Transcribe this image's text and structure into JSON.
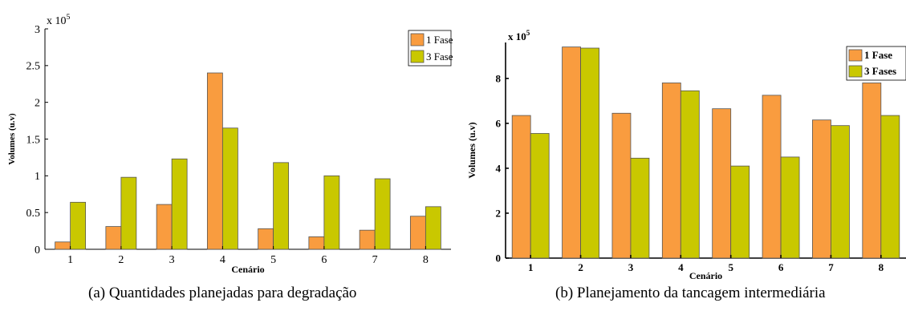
{
  "captions": {
    "a": "(a) Quantidades planejadas para degradação",
    "b": "(b) Planejamento da tancagem intermediária"
  },
  "colors": {
    "series1": "#f99c3f",
    "series2": "#c9c800"
  },
  "chart_data": [
    {
      "type": "bar",
      "xlabel": "Cenário",
      "ylabel": "Volumes (u.v)",
      "exponent_label": "x 10",
      "exponent": "5",
      "categories": [
        "1",
        "2",
        "3",
        "4",
        "5",
        "6",
        "7",
        "8"
      ],
      "ylim": [
        0,
        3
      ],
      "yticks": [
        "0",
        "0.5",
        "1",
        "1.5",
        "2",
        "2.5",
        "3"
      ],
      "grid": false,
      "legend_position": "top-right",
      "series": [
        {
          "name": "1 Fase",
          "values": [
            0.1,
            0.31,
            0.61,
            2.4,
            0.28,
            0.17,
            0.26,
            0.45
          ]
        },
        {
          "name": "3 Fases",
          "values": [
            0.64,
            0.98,
            1.23,
            1.65,
            1.18,
            1.0,
            0.96,
            0.58
          ]
        }
      ]
    },
    {
      "type": "bar",
      "xlabel": "Cenário",
      "ylabel": "Volumes (u.v)",
      "exponent_label": "x 10",
      "exponent": "5",
      "categories": [
        "1",
        "2",
        "3",
        "4",
        "5",
        "6",
        "7",
        "8"
      ],
      "ylim": [
        0,
        9.6
      ],
      "yticks": [
        "0",
        "2",
        "4",
        "6",
        "8"
      ],
      "grid": false,
      "legend_position": "top-right",
      "series": [
        {
          "name": "1 Fase",
          "values": [
            6.35,
            9.4,
            6.45,
            7.8,
            6.65,
            7.25,
            6.15,
            7.8
          ]
        },
        {
          "name": "3 Fases",
          "values": [
            5.55,
            9.35,
            4.45,
            7.45,
            4.1,
            4.5,
            5.9,
            6.35
          ]
        }
      ]
    }
  ]
}
